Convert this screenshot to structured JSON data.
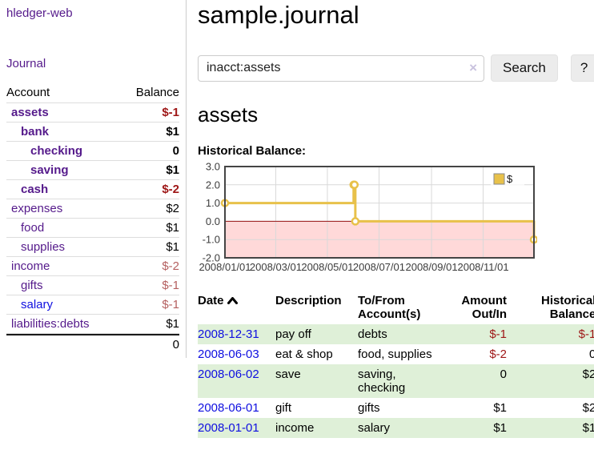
{
  "app": {
    "title": "hledger-web"
  },
  "sidebar": {
    "journal_link": "Journal",
    "table": {
      "headers": {
        "account": "Account",
        "balance": "Balance"
      },
      "rows": [
        {
          "account": "assets",
          "balance": "$-1",
          "depth": 1,
          "bold": true,
          "balance_style": "neg-strong"
        },
        {
          "account": "bank",
          "balance": "$1",
          "depth": 2,
          "bold": true
        },
        {
          "account": "checking",
          "balance": "0",
          "depth": 3,
          "bold": true
        },
        {
          "account": "saving",
          "balance": "$1",
          "depth": 3,
          "bold": true
        },
        {
          "account": "cash",
          "balance": "$-2",
          "depth": 2,
          "bold": true,
          "balance_style": "neg-strong"
        },
        {
          "account": "expenses",
          "balance": "$2",
          "depth": 1
        },
        {
          "account": "food",
          "balance": "$1",
          "depth": 2
        },
        {
          "account": "supplies",
          "balance": "$1",
          "depth": 2
        },
        {
          "account": "income",
          "balance": "$-2",
          "depth": 1,
          "balance_style": "neg-soft"
        },
        {
          "account": "gifts",
          "balance": "$-1",
          "depth": 2,
          "balance_style": "neg-soft"
        },
        {
          "account": "salary",
          "balance": "$-1",
          "depth": 2,
          "blue": true,
          "balance_style": "neg-soft"
        },
        {
          "account": "liabilities:debts",
          "balance": "$1",
          "depth": 1
        }
      ],
      "total": "0"
    }
  },
  "main": {
    "title": "sample.journal",
    "search": {
      "value": "inacct:assets",
      "clear_icon": "×",
      "button_label": "Search",
      "help_label": "?"
    },
    "account_heading": "assets",
    "chart_label": "Historical Balance:"
  },
  "chart_data": {
    "type": "line",
    "step": true,
    "title": "Historical Balance",
    "legend": [
      {
        "label": "$",
        "color": "#e8c14a"
      }
    ],
    "ylim": [
      -2,
      3
    ],
    "x_range": [
      "2008-01-01",
      "2008-12-31"
    ],
    "y_ticks": [
      {
        "value": 3,
        "label": "3.0"
      },
      {
        "value": 2,
        "label": "2.0"
      },
      {
        "value": 1,
        "label": "1.0"
      },
      {
        "value": 0,
        "label": "0.0"
      },
      {
        "value": -1,
        "label": "-1.0"
      },
      {
        "value": -2,
        "label": "-2.0"
      }
    ],
    "x_ticks": [
      {
        "date": "2008-01-01",
        "label": "2008/01/01"
      },
      {
        "date": "2008-03-01",
        "label": "2008/03/01"
      },
      {
        "date": "2008-05-01",
        "label": "2008/05/01"
      },
      {
        "date": "2008-07-01",
        "label": "2008/07/01"
      },
      {
        "date": "2008-09-01",
        "label": "2008/09/01"
      },
      {
        "date": "2008-11-01",
        "label": "2008/11/01"
      }
    ],
    "points": [
      {
        "date": "2008-01-01",
        "value": 1
      },
      {
        "date": "2008-06-01",
        "value": 2
      },
      {
        "date": "2008-06-02",
        "value": 2
      },
      {
        "date": "2008-06-03",
        "value": 0
      },
      {
        "date": "2008-12-31",
        "value": -1
      }
    ],
    "grid": true,
    "legend_position": "top-right",
    "line_color": "#e8c14a",
    "negative_region_fill": "#ffd9d9",
    "zero_line_color": "#991111",
    "plot_border_color": "#454545"
  },
  "transactions": {
    "headers": {
      "date": "Date",
      "description": "Description",
      "account": "To/From Account(s)",
      "amount": "Amount Out/In",
      "balance": "Historical Balance"
    },
    "rows": [
      {
        "date": "2008-12-31",
        "description": "pay off",
        "accounts": "debts",
        "amount": "$-1",
        "balance": "$-1",
        "amount_negative": true,
        "balance_negative": true
      },
      {
        "date": "2008-06-03",
        "description": "eat & shop",
        "accounts": "food, supplies",
        "amount": "$-2",
        "balance": "0",
        "amount_negative": true
      },
      {
        "date": "2008-06-02",
        "description": "save",
        "accounts": "saving, checking",
        "amount": "0",
        "balance": "$2"
      },
      {
        "date": "2008-06-01",
        "description": "gift",
        "accounts": "gifts",
        "amount": "$1",
        "balance": "$2"
      },
      {
        "date": "2008-01-01",
        "description": "income",
        "accounts": "salary",
        "amount": "$1",
        "balance": "$1"
      }
    ]
  },
  "colors": {
    "accent_purple": "#551a8b",
    "link_blue": "#0f0fe0",
    "negative_strong": "#9e1616",
    "negative_soft": "#b56060",
    "row_stripe_green": "#dff0d8",
    "chart_gold": "#e8c14a",
    "chart_negative_pink": "#ffd9d9",
    "chart_zero_red": "#991111"
  }
}
